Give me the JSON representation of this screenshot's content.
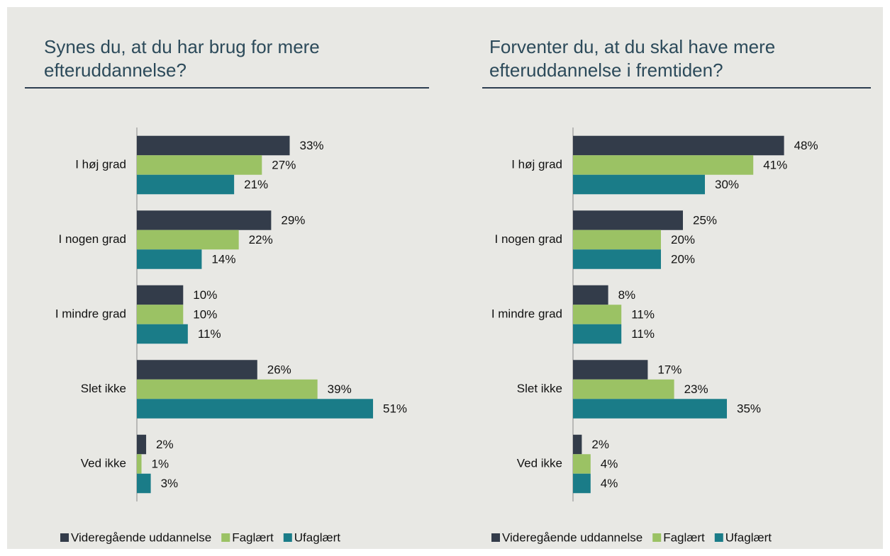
{
  "chart_data": [
    {
      "type": "bar",
      "orientation": "horizontal",
      "title": "Synes du, at du har brug for mere efteruddannelse?",
      "categories": [
        "I høj grad",
        "I nogen grad",
        "I mindre grad",
        "Slet ikke",
        "Ved ikke"
      ],
      "series": [
        {
          "name": "Videregående uddannelse",
          "color": "#333c4a",
          "values": [
            33,
            29,
            10,
            26,
            2
          ],
          "value_labels": [
            "33%",
            "29%",
            "10%",
            "26%",
            "2%"
          ]
        },
        {
          "name": "Faglært",
          "color": "#9bc264",
          "values": [
            27,
            22,
            10,
            39,
            1
          ],
          "value_labels": [
            "27%",
            "22%",
            "10%",
            "39%",
            "1%"
          ]
        },
        {
          "name": "Ufaglært",
          "color": "#1a7c88",
          "values": [
            21,
            14,
            11,
            51,
            3
          ],
          "value_labels": [
            "21%",
            "14%",
            "11%",
            "51%",
            "3%"
          ]
        }
      ],
      "legend": "bottom"
    },
    {
      "type": "bar",
      "orientation": "horizontal",
      "title": "Forventer du, at du skal have mere efteruddannelse i fremtiden?",
      "categories": [
        "I høj grad",
        "I nogen grad",
        "I mindre grad",
        "Slet ikke",
        "Ved ikke"
      ],
      "series": [
        {
          "name": "Videregående uddannelse",
          "color": "#333c4a",
          "values": [
            48,
            25,
            8,
            17,
            2
          ],
          "value_labels": [
            "48%",
            "25%",
            "8%",
            "17%",
            "2%"
          ]
        },
        {
          "name": "Faglært",
          "color": "#9bc264",
          "values": [
            41,
            20,
            11,
            23,
            4
          ],
          "value_labels": [
            "41%",
            "20%",
            "11%",
            "23%",
            "4%"
          ]
        },
        {
          "name": "Ufaglært",
          "color": "#1a7c88",
          "values": [
            30,
            20,
            11,
            35,
            4
          ],
          "value_labels": [
            "30%",
            "20%",
            "11%",
            "35%",
            "4%"
          ]
        }
      ],
      "legend": "bottom"
    }
  ]
}
